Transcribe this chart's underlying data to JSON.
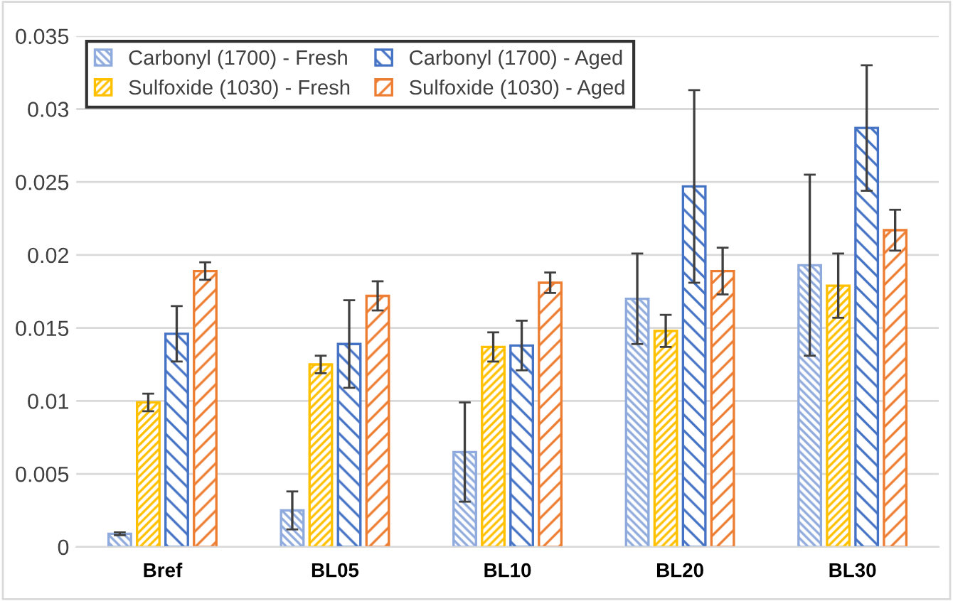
{
  "chart_data": {
    "type": "bar",
    "categories": [
      "Bref",
      "BL05",
      "BL10",
      "BL20",
      "BL30"
    ],
    "series": [
      {
        "name": "Carbonyl (1700) - Fresh",
        "color": "#8faadc",
        "values": [
          0.0009,
          0.0025,
          0.0065,
          0.017,
          0.0193
        ],
        "errors": [
          0.0001,
          0.0013,
          0.0034,
          0.0031,
          0.0062
        ]
      },
      {
        "name": "Sulfoxide (1030) - Fresh",
        "color": "#ffc000",
        "values": [
          0.0099,
          0.0125,
          0.0137,
          0.0148,
          0.0179
        ],
        "errors": [
          0.0006,
          0.0006,
          0.001,
          0.0011,
          0.0022
        ]
      },
      {
        "name": "Carbonyl (1700) - Aged",
        "color": "#4472c4",
        "values": [
          0.0146,
          0.0139,
          0.0138,
          0.0247,
          0.0287
        ],
        "errors": [
          0.0019,
          0.003,
          0.0017,
          0.0066,
          0.0043
        ]
      },
      {
        "name": "Sulfoxide (1030) - Aged",
        "color": "#ed7d31",
        "values": [
          0.0189,
          0.0172,
          0.0181,
          0.0189,
          0.0217
        ],
        "errors": [
          0.0006,
          0.001,
          0.0007,
          0.0016,
          0.0014
        ]
      }
    ],
    "ylim": [
      0,
      0.035
    ],
    "yticks": [
      0,
      0.005,
      0.01,
      0.015,
      0.02,
      0.025,
      0.03,
      0.035
    ],
    "grid": "y",
    "legend": "top left"
  }
}
